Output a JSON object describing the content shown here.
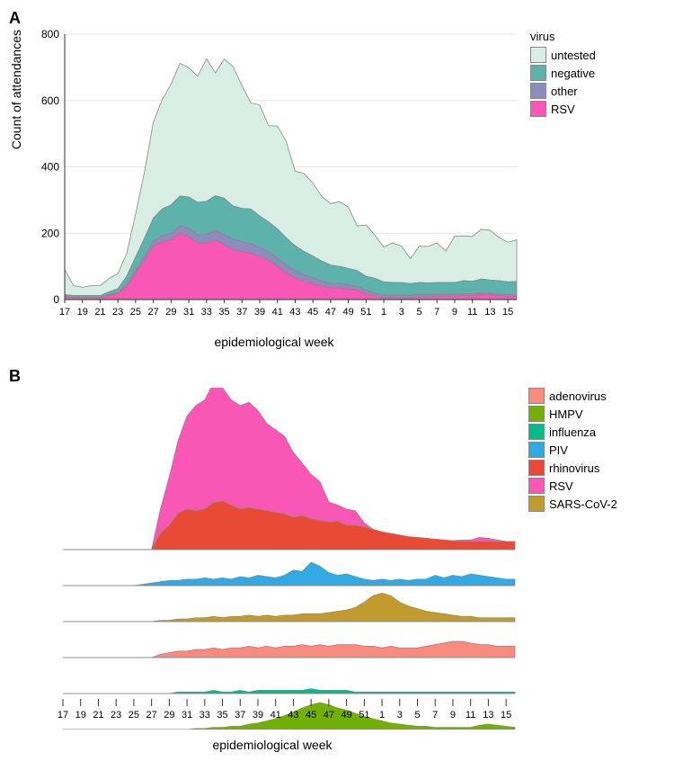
{
  "panelA": {
    "label": "A",
    "ylabel": "Count of attendances",
    "xlabel": "epidemiological week",
    "legend_title": "virus",
    "legend": [
      {
        "label": "untested",
        "color": "#d8ede3"
      },
      {
        "label": "negative",
        "color": "#5db3ab"
      },
      {
        "label": "other",
        "color": "#8d8dbd"
      },
      {
        "label": "RSV",
        "color": "#f857b5"
      }
    ],
    "xlim": [
      17,
      68
    ],
    "ylim": [
      0,
      800
    ],
    "ytick_step": 200,
    "xticks": [
      17,
      19,
      21,
      23,
      25,
      27,
      29,
      31,
      33,
      35,
      37,
      39,
      41,
      43,
      45,
      47,
      49,
      51,
      1,
      3,
      5,
      7,
      9,
      11,
      13,
      15
    ],
    "grid_color": "#e6e6e6",
    "background_color": "#ffffff",
    "stroke_color": "#888888",
    "series": [
      {
        "name": "RSV",
        "color": "#f857b5",
        "values": [
          8,
          5,
          5,
          5,
          5,
          12,
          18,
          40,
          80,
          120,
          160,
          175,
          180,
          200,
          190,
          170,
          170,
          180,
          165,
          150,
          145,
          140,
          130,
          118,
          100,
          80,
          65,
          55,
          48,
          40,
          35,
          35,
          32,
          28,
          18,
          10,
          5,
          5,
          5,
          5,
          8,
          8,
          10,
          10,
          10,
          12,
          12,
          15,
          14,
          12,
          10,
          10
        ]
      },
      {
        "name": "other",
        "color": "#8d8dbd",
        "values": [
          2,
          2,
          2,
          2,
          2,
          3,
          3,
          5,
          8,
          10,
          15,
          18,
          20,
          22,
          24,
          25,
          26,
          28,
          30,
          32,
          30,
          28,
          27,
          26,
          25,
          24,
          22,
          20,
          18,
          16,
          14,
          13,
          12,
          11,
          10,
          9,
          8,
          8,
          8,
          7,
          7,
          7,
          6,
          6,
          6,
          5,
          5,
          5,
          5,
          5,
          5,
          5
        ]
      },
      {
        "name": "negative",
        "color": "#5db3ab",
        "values": [
          5,
          5,
          5,
          5,
          5,
          8,
          12,
          25,
          40,
          55,
          70,
          80,
          85,
          90,
          95,
          98,
          100,
          105,
          110,
          100,
          100,
          105,
          95,
          90,
          88,
          82,
          75,
          70,
          65,
          60,
          55,
          52,
          50,
          48,
          42,
          45,
          40,
          38,
          38,
          36,
          36,
          35,
          35,
          35,
          35,
          40,
          38,
          42,
          40,
          40,
          38,
          40
        ]
      },
      {
        "name": "untested",
        "color": "#d8ede3",
        "values": [
          75,
          30,
          25,
          30,
          30,
          40,
          45,
          70,
          130,
          200,
          290,
          330,
          365,
          400,
          390,
          380,
          430,
          370,
          420,
          420,
          370,
          320,
          335,
          290,
          310,
          290,
          225,
          235,
          220,
          195,
          185,
          195,
          185,
          135,
          155,
          130,
          105,
          120,
          110,
          75,
          110,
          110,
          120,
          95,
          140,
          135,
          135,
          150,
          150,
          130,
          120,
          125
        ]
      }
    ]
  },
  "panelB": {
    "label": "B",
    "xlabel": "epidemiological week",
    "legend": [
      {
        "label": "adenovirus",
        "color": "#f88a7e"
      },
      {
        "label": "HMPV",
        "color": "#72b000"
      },
      {
        "label": "influenza",
        "color": "#00bb8a"
      },
      {
        "label": "PIV",
        "color": "#31a9e2"
      },
      {
        "label": "rhinovirus",
        "color": "#e94a35"
      },
      {
        "label": "RSV",
        "color": "#f857b5"
      },
      {
        "label": "SARS-CoV-2",
        "color": "#c19b2e"
      }
    ],
    "xticks": [
      17,
      19,
      21,
      23,
      25,
      27,
      29,
      31,
      33,
      35,
      37,
      39,
      41,
      43,
      45,
      47,
      49,
      51,
      1,
      3,
      5,
      7,
      9,
      11,
      13,
      15
    ],
    "background_color": "#ffffff",
    "stroke_color": "#888888",
    "rows": [
      {
        "ymax": 200,
        "series": [
          {
            "name": "rhinovirus",
            "color": "#e94a35",
            "values": [
              0,
              0,
              0,
              0,
              0,
              0,
              0,
              0,
              0,
              0,
              0,
              20,
              30,
              45,
              50,
              48,
              50,
              58,
              60,
              55,
              50,
              52,
              50,
              48,
              46,
              44,
              40,
              42,
              38,
              36,
              34,
              35,
              30,
              30,
              28,
              25,
              22,
              20,
              18,
              16,
              15,
              14,
              13,
              12,
              11,
              10,
              10,
              10,
              10,
              10,
              10,
              10
            ]
          },
          {
            "name": "RSV",
            "color": "#f857b5",
            "values": [
              0,
              0,
              0,
              0,
              0,
              0,
              0,
              0,
              0,
              0,
              0,
              30,
              60,
              90,
              115,
              130,
              135,
              148,
              140,
              130,
              128,
              130,
              122,
              108,
              102,
              96,
              80,
              65,
              55,
              48,
              25,
              20,
              20,
              18,
              5,
              0,
              0,
              0,
              0,
              0,
              0,
              0,
              0,
              0,
              0,
              2,
              2,
              5,
              4,
              2,
              0,
              0
            ]
          }
        ]
      },
      {
        "ymax": 25,
        "series": [
          {
            "name": "PIV",
            "color": "#31a9e2",
            "values": [
              0,
              0,
              0,
              0,
              0,
              0,
              0,
              0,
              0,
              1,
              2,
              3,
              4,
              4,
              5,
              5,
              6,
              5,
              6,
              5,
              7,
              6,
              8,
              7,
              6,
              8,
              12,
              11,
              18,
              15,
              10,
              8,
              9,
              7,
              5,
              4,
              5,
              4,
              5,
              4,
              5,
              5,
              8,
              6,
              8,
              7,
              9,
              8,
              7,
              6,
              5,
              5
            ]
          }
        ]
      },
      {
        "ymax": 25,
        "series": [
          {
            "name": "SARS-CoV-2",
            "color": "#c19b2e",
            "values": [
              0,
              0,
              0,
              0,
              0,
              0,
              0,
              0,
              0,
              0,
              0,
              1,
              1,
              2,
              2,
              3,
              3,
              4,
              3,
              4,
              4,
              5,
              4,
              5,
              4,
              5,
              5,
              6,
              6,
              6,
              7,
              8,
              9,
              11,
              15,
              20,
              22,
              20,
              15,
              12,
              10,
              8,
              7,
              6,
              5,
              4,
              4,
              3,
              3,
              3,
              3,
              3
            ]
          }
        ]
      },
      {
        "ymax": 20,
        "series": [
          {
            "name": "adenovirus",
            "color": "#f88a7e",
            "values": [
              0,
              0,
              0,
              0,
              0,
              0,
              0,
              0,
              0,
              0,
              0,
              2,
              3,
              4,
              4,
              5,
              5,
              6,
              5,
              6,
              6,
              7,
              6,
              7,
              6,
              7,
              7,
              8,
              7,
              8,
              7,
              8,
              8,
              8,
              7,
              7,
              6,
              7,
              6,
              6,
              6,
              7,
              8,
              9,
              10,
              10,
              9,
              8,
              8,
              7,
              7,
              7
            ]
          }
        ]
      },
      {
        "ymax": 20,
        "series": [
          {
            "name": "influenza",
            "color": "#00bb8a",
            "values": [
              0,
              0,
              0,
              0,
              0,
              0,
              0,
              0,
              0,
              0,
              0,
              0,
              0,
              1,
              1,
              1,
              1,
              2,
              1,
              1,
              2,
              1,
              2,
              2,
              2,
              2,
              2,
              2,
              3,
              2,
              2,
              2,
              2,
              1,
              1,
              1,
              1,
              1,
              1,
              1,
              1,
              1,
              1,
              1,
              1,
              1,
              1,
              1,
              1,
              1,
              1,
              1
            ]
          }
        ]
      },
      {
        "ymax": 30,
        "series": [
          {
            "name": "HMPV",
            "color": "#72b000",
            "values": [
              0,
              0,
              0,
              0,
              0,
              0,
              0,
              0,
              0,
              0,
              0,
              0,
              0,
              0,
              0,
              1,
              1,
              2,
              2,
              3,
              3,
              5,
              6,
              8,
              10,
              13,
              16,
              20,
              23,
              25,
              23,
              20,
              18,
              15,
              12,
              10,
              8,
              6,
              5,
              4,
              3,
              3,
              2,
              2,
              2,
              2,
              2,
              4,
              5,
              4,
              3,
              2
            ]
          }
        ]
      }
    ]
  }
}
